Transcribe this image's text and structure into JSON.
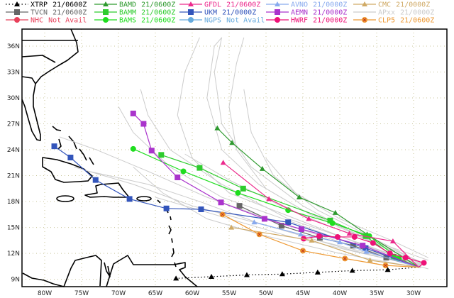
{
  "legend": [
    {
      "id": "xtrp",
      "name": "XTRP",
      "time": "21/0600Z",
      "color": "#000000",
      "marker": "triangle",
      "dotted": true
    },
    {
      "id": "tvcn",
      "name": "TVCN",
      "time": "21/0600Z",
      "color": "#666666",
      "marker": "square"
    },
    {
      "id": "nhc",
      "name": "NHC",
      "time": "Not Avail",
      "color": "#e8405a",
      "marker": "circle"
    },
    {
      "id": "bamd",
      "name": "BAMD",
      "time": "21/0600Z",
      "color": "#2f9a2f",
      "marker": "triangle"
    },
    {
      "id": "bamm",
      "name": "BAMM",
      "time": "21/0600Z",
      "color": "#2ecc2e",
      "marker": "square"
    },
    {
      "id": "bams",
      "name": "BAMS",
      "time": "21/0600Z",
      "color": "#1fdd1f",
      "marker": "circle"
    },
    {
      "id": "gfdl",
      "name": "GFDL",
      "time": "21/0600Z",
      "color": "#ec2a8c",
      "marker": "triangle"
    },
    {
      "id": "ukm",
      "name": "UKM",
      "time": "21/0000Z",
      "color": "#3355bb",
      "marker": "square"
    },
    {
      "id": "ngps",
      "name": "NGPS",
      "time": "Not Avail",
      "color": "#66aadd",
      "marker": "circle"
    },
    {
      "id": "avno",
      "name": "AVNO",
      "time": "21/0000Z",
      "color": "#88aaee",
      "marker": "triangle"
    },
    {
      "id": "aemn",
      "name": "AEMN",
      "time": "21/0000Z",
      "color": "#aa33cc",
      "marker": "square"
    },
    {
      "id": "hwrf",
      "name": "HWRF",
      "time": "21/0000Z",
      "color": "#ee1177",
      "marker": "circle"
    },
    {
      "id": "cmc",
      "name": "CMC",
      "time": "21/0000Z",
      "color": "#d0aa66",
      "marker": "triangle"
    },
    {
      "id": "apxx",
      "name": "APxx",
      "time": "21/0000Z",
      "color": "#cccccc",
      "marker": "none"
    },
    {
      "id": "clp5",
      "name": "CLP5",
      "time": "21/0600Z",
      "color": "#ee9933",
      "marker": "xcircle"
    }
  ],
  "start": [
    -29.3,
    10.4
  ],
  "tracks": {
    "xtrp": [
      [
        -33.5,
        10.1
      ],
      [
        -38.3,
        10.0
      ],
      [
        -43.0,
        9.8
      ],
      [
        -47.8,
        9.6
      ],
      [
        -52.6,
        9.5
      ],
      [
        -57.4,
        9.3
      ],
      [
        -62.2,
        9.1
      ]
    ],
    "tvcn": [
      [
        -33.7,
        11.5
      ],
      [
        -38.2,
        12.9
      ],
      [
        -42.7,
        13.8
      ],
      [
        -47.9,
        15.2
      ],
      [
        -53.6,
        17.5
      ]
    ],
    "bamd": [
      [
        -36.3,
        14.2
      ],
      [
        -40.6,
        16.7
      ],
      [
        -45.5,
        18.5
      ],
      [
        -50.5,
        21.8
      ],
      [
        -54.6,
        24.8
      ],
      [
        -56.6,
        26.5
      ]
    ],
    "bamm": [
      [
        -32.7,
        11.6
      ],
      [
        -36.5,
        14.0
      ],
      [
        -41.3,
        15.8
      ],
      [
        -53.1,
        19.5
      ],
      [
        -59.0,
        21.9
      ],
      [
        -64.2,
        23.4
      ]
    ],
    "bams": [
      [
        -32.0,
        11.4
      ],
      [
        -36.0,
        14.0
      ],
      [
        -41.0,
        15.5
      ],
      [
        -47.0,
        17.0
      ],
      [
        -53.8,
        19.0
      ],
      [
        -61.2,
        21.5
      ],
      [
        -68.0,
        24.1
      ]
    ],
    "gfdl": [
      [
        -32.8,
        13.4
      ],
      [
        -38.7,
        14.3
      ],
      [
        -44.2,
        16.0
      ],
      [
        -49.6,
        18.3
      ],
      [
        -55.8,
        22.5
      ]
    ],
    "ukm": [
      [
        -36.5,
        12.6
      ],
      [
        -47.0,
        15.6
      ],
      [
        -58.8,
        17.1
      ],
      [
        -63.5,
        17.2
      ],
      [
        -68.5,
        18.3
      ],
      [
        -73.1,
        20.5
      ],
      [
        -76.5,
        23.1
      ],
      [
        -78.7,
        24.4
      ]
    ],
    "avno": [
      [
        -36.4,
        12.2
      ],
      [
        -40.0,
        13.3
      ],
      [
        -45.3,
        14.2
      ],
      [
        -51.6,
        15.6
      ]
    ],
    "aemn": [
      [
        -36.9,
        12.9
      ],
      [
        -45.2,
        14.8
      ],
      [
        -50.2,
        16.0
      ],
      [
        -56.1,
        17.9
      ],
      [
        -62.0,
        20.8
      ],
      [
        -65.5,
        23.9
      ],
      [
        -66.6,
        27.0
      ],
      [
        -68.0,
        28.2
      ]
    ],
    "hwrf": [
      [
        -28.6,
        10.9
      ],
      [
        -31.1,
        11.5
      ],
      [
        -33.2,
        12.0
      ],
      [
        -35.5,
        13.2
      ],
      [
        -38.0,
        13.9
      ],
      [
        -40.3,
        13.9
      ],
      [
        -42.8,
        14.0
      ],
      [
        -44.9,
        13.7
      ]
    ],
    "cmc": [
      [
        -35.9,
        11.2
      ],
      [
        -43.8,
        13.5
      ],
      [
        -54.7,
        15.0
      ]
    ],
    "clp5": [
      [
        -33.8,
        10.6
      ],
      [
        -39.3,
        11.4
      ],
      [
        -45.0,
        12.3
      ],
      [
        -50.9,
        14.2
      ],
      [
        -55.9,
        16.5
      ]
    ]
  },
  "ensemble_tracks": [
    [
      [
        -29,
        10.8
      ],
      [
        -36,
        13.5
      ],
      [
        -44,
        16.5
      ],
      [
        -50,
        19.5
      ],
      [
        -54,
        24
      ],
      [
        -55,
        29
      ],
      [
        -54,
        34
      ],
      [
        -53,
        37
      ]
    ],
    [
      [
        -29,
        11
      ],
      [
        -37,
        14
      ],
      [
        -45,
        17
      ],
      [
        -51,
        20
      ],
      [
        -56,
        24
      ],
      [
        -58,
        30
      ],
      [
        -57,
        36
      ],
      [
        -56,
        37
      ]
    ],
    [
      [
        -29,
        10.6
      ],
      [
        -37,
        13
      ],
      [
        -46,
        16
      ],
      [
        -55,
        19
      ],
      [
        -60,
        23
      ],
      [
        -62,
        28
      ],
      [
        -61,
        33
      ],
      [
        -59,
        37
      ]
    ],
    [
      [
        -29,
        10.7
      ],
      [
        -38,
        13.4
      ],
      [
        -47,
        16
      ],
      [
        -56,
        20
      ],
      [
        -63,
        24
      ],
      [
        -66,
        28
      ],
      [
        -67,
        31
      ]
    ],
    [
      [
        -29,
        10.5
      ],
      [
        -38,
        12.8
      ],
      [
        -48,
        15.5
      ],
      [
        -58,
        18.5
      ],
      [
        -66,
        21.5
      ],
      [
        -73,
        24
      ],
      [
        -78,
        25.5
      ]
    ],
    [
      [
        -29,
        10.4
      ],
      [
        -39,
        12.5
      ],
      [
        -49,
        15
      ],
      [
        -60,
        17.5
      ],
      [
        -68,
        20
      ],
      [
        -76,
        22
      ]
    ],
    [
      [
        -29,
        10.6
      ],
      [
        -38,
        13
      ],
      [
        -47,
        15.8
      ],
      [
        -56,
        18.5
      ],
      [
        -63,
        22
      ],
      [
        -68,
        26
      ],
      [
        -70,
        29
      ]
    ],
    [
      [
        -29,
        10.9
      ],
      [
        -36,
        14
      ],
      [
        -43,
        17
      ],
      [
        -49,
        21
      ],
      [
        -52,
        26
      ],
      [
        -53,
        31
      ]
    ],
    [
      [
        -29,
        10.3
      ],
      [
        -40,
        12
      ],
      [
        -50,
        14
      ],
      [
        -58,
        16
      ],
      [
        -64,
        19
      ],
      [
        -68,
        22
      ]
    ],
    [
      [
        -29,
        10.8
      ],
      [
        -37,
        13.8
      ],
      [
        -45,
        17.5
      ],
      [
        -52,
        22
      ],
      [
        -56,
        27
      ],
      [
        -57,
        33
      ],
      [
        -56,
        37
      ]
    ],
    [
      [
        -28,
        11.2
      ],
      [
        -34,
        13
      ],
      [
        -41,
        15
      ],
      [
        -48,
        17.5
      ],
      [
        -55,
        20.5
      ],
      [
        -61,
        23.5
      ]
    ],
    [
      [
        -28,
        10.2
      ],
      [
        -35,
        11.8
      ],
      [
        -43,
        13.5
      ],
      [
        -51,
        15.5
      ],
      [
        -59,
        18
      ],
      [
        -66,
        20
      ],
      [
        -74,
        21.5
      ]
    ],
    [
      [
        -28,
        11.5
      ],
      [
        -33,
        13.5
      ],
      [
        -40,
        16
      ],
      [
        -46,
        19
      ],
      [
        -50,
        23
      ]
    ],
    [
      [
        -29,
        10.5
      ],
      [
        -38,
        12.2
      ],
      [
        -47,
        14
      ],
      [
        -57,
        16.5
      ],
      [
        -65,
        18.5
      ]
    ]
  ],
  "axes": {
    "lat_labels": [
      "9N",
      "12N",
      "15N",
      "18N",
      "21N",
      "24N",
      "27N",
      "30N",
      "33N",
      "36N"
    ],
    "lat_values": [
      9,
      12,
      15,
      18,
      21,
      24,
      27,
      30,
      33,
      36
    ],
    "lon_labels": [
      "80W",
      "75W",
      "70W",
      "65W",
      "60W",
      "55W",
      "50W",
      "45W",
      "40W",
      "35W",
      "30W"
    ],
    "lon_values": [
      -80,
      -75,
      -70,
      -65,
      -60,
      -55,
      -50,
      -45,
      -40,
      -35,
      -30
    ]
  },
  "colors": {
    "grid": "#c8c49a",
    "coast": "#000000",
    "frame": "#000000"
  }
}
